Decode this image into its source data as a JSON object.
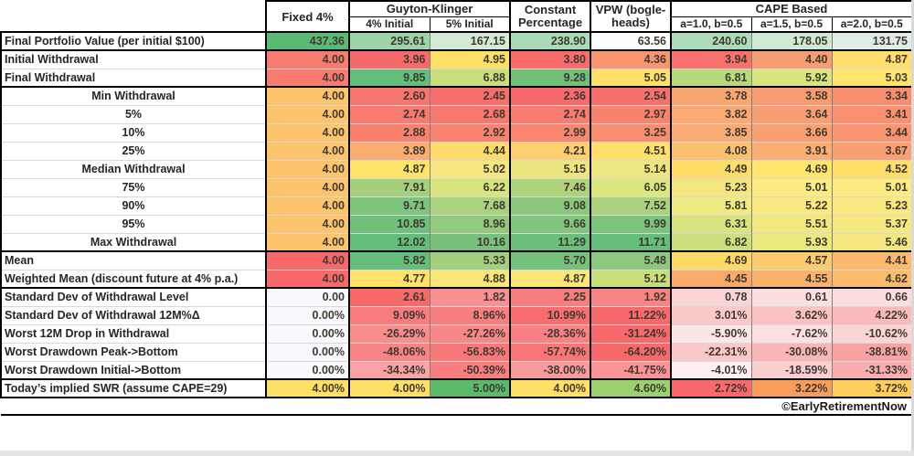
{
  "chart_data": {
    "type": "heatmap",
    "title": "",
    "palette": {
      "min_color": "#F8696B",
      "mid_color": "#FFEB84",
      "max_color": "#63BE7B"
    },
    "header": {
      "fixed": "Fixed 4%",
      "guyton_klinger": "Guyton-Klinger",
      "gk_sub_1": "4% Initial",
      "gk_sub_2": "5% Initial",
      "constant_1": "Constant",
      "constant_2": "Percentage",
      "vpw_1": "VPW (bogle-",
      "vpw_2": "heads)",
      "cape": "CAPE Based",
      "cape_sub_1": "a=1.0, b=0.5",
      "cape_sub_2": "a=1.5, b=0.5",
      "cape_sub_3": "a=2.0, b=0.5"
    },
    "columns": [
      "Fixed 4%",
      "Guyton-Klinger 4% Initial",
      "Guyton-Klinger 5% Initial",
      "Constant Percentage",
      "VPW (bogleheads)",
      "CAPE Based a=1.0, b=0.5",
      "CAPE Based a=1.5, b=0.5",
      "CAPE Based a=2.0, b=0.5"
    ],
    "rows": [
      {
        "label": "Final Portfolio Value (per initial $100)",
        "align": "left",
        "sectionStart": true,
        "values": [
          "437.36",
          "295.61",
          "167.15",
          "238.90",
          "63.56",
          "240.60",
          "178.05",
          "131.75"
        ],
        "colors": [
          "#5ABA73",
          "#9DD3A6",
          "#D2EAD6",
          "#ABDAB6",
          "#FDFDFB",
          "#AEDCBA",
          "#CFE9D6",
          "#E0EDE5"
        ]
      },
      {
        "label": "Initial Withdrawal",
        "align": "left",
        "sectionStart": true,
        "values": [
          "4.00",
          "3.96",
          "4.95",
          "3.80",
          "4.36",
          "3.94",
          "4.40",
          "4.87"
        ],
        "colors": [
          "#F87B70",
          "#F8696B",
          "#FFE066",
          "#F86C6C",
          "#F9966F",
          "#F8716D",
          "#F99D72",
          "#FFDF6B"
        ]
      },
      {
        "label": "Final Withdrawal",
        "align": "left",
        "sectionStart": false,
        "values": [
          "4.00",
          "9.85",
          "6.88",
          "9.28",
          "5.05",
          "6.81",
          "5.92",
          "5.03"
        ],
        "colors": [
          "#F87B70",
          "#63BE7B",
          "#C9DF7D",
          "#70C07A",
          "#FFE169",
          "#B8D97B",
          "#D9E57D",
          "#FFE56D"
        ]
      },
      {
        "label": "Min Withdrawal",
        "align": "center",
        "sectionStart": true,
        "values": [
          "4.00",
          "2.60",
          "2.45",
          "2.36",
          "2.54",
          "3.78",
          "3.58",
          "3.34"
        ],
        "colors": [
          "#FBC46D",
          "#F8746E",
          "#F86E6C",
          "#F8696B",
          "#F8706D",
          "#FAA772",
          "#F99B71",
          "#F98D6F"
        ]
      },
      {
        "label": "5%",
        "align": "center",
        "sectionStart": false,
        "values": [
          "4.00",
          "2.74",
          "2.68",
          "2.74",
          "2.97",
          "3.82",
          "3.64",
          "3.41"
        ],
        "colors": [
          "#FBC46D",
          "#F87A70",
          "#F8776F",
          "#F87A70",
          "#F9826F",
          "#FAA973",
          "#F99E72",
          "#F99170"
        ]
      },
      {
        "label": "10%",
        "align": "center",
        "sectionStart": false,
        "values": [
          "4.00",
          "2.88",
          "2.92",
          "2.99",
          "3.25",
          "3.85",
          "3.66",
          "3.44"
        ],
        "colors": [
          "#FBC46D",
          "#F9816E",
          "#F9836F",
          "#F9876F",
          "#F98D70",
          "#FAAB73",
          "#F99F72",
          "#F99370"
        ]
      },
      {
        "label": "25%",
        "align": "center",
        "sectionStart": false,
        "values": [
          "4.00",
          "3.89",
          "4.44",
          "4.21",
          "4.51",
          "4.08",
          "3.91",
          "3.67"
        ],
        "colors": [
          "#FBC46D",
          "#FAAC73",
          "#FFDC69",
          "#FDCF6E",
          "#FFE06A",
          "#FBC06E",
          "#FAAE73",
          "#F9A072"
        ]
      },
      {
        "label": "Median Withdrawal",
        "align": "center",
        "sectionStart": false,
        "values": [
          "4.00",
          "4.87",
          "5.02",
          "5.15",
          "5.14",
          "4.49",
          "4.69",
          "4.52"
        ],
        "colors": [
          "#FBC46D",
          "#FEE468",
          "#F4E681",
          "#EDE680",
          "#EEE680",
          "#FEDE69",
          "#FEE56B",
          "#FEDF6A"
        ]
      },
      {
        "label": "75%",
        "align": "center",
        "sectionStart": false,
        "values": [
          "4.00",
          "7.91",
          "6.22",
          "7.46",
          "6.05",
          "5.23",
          "5.01",
          "5.01"
        ],
        "colors": [
          "#FBC46D",
          "#A3CF7E",
          "#D8E47E",
          "#AED37D",
          "#DDE77F",
          "#F4E780",
          "#FBEB80",
          "#FBEB80"
        ]
      },
      {
        "label": "90%",
        "align": "center",
        "sectionStart": false,
        "values": [
          "4.00",
          "9.71",
          "7.68",
          "9.08",
          "7.52",
          "5.81",
          "5.22",
          "5.23"
        ],
        "colors": [
          "#FBC46D",
          "#7FC47C",
          "#ABD27E",
          "#8BC87D",
          "#AAD27E",
          "#EFEA81",
          "#F8EA7F",
          "#F8EA7F"
        ]
      },
      {
        "label": "95%",
        "align": "center",
        "sectionStart": false,
        "values": [
          "4.00",
          "10.85",
          "8.96",
          "9.66",
          "9.99",
          "6.31",
          "5.51",
          "5.37"
        ],
        "colors": [
          "#FBC46D",
          "#70BF7A",
          "#93C97D",
          "#82C57C",
          "#7CC37C",
          "#D9E47E",
          "#F3E780",
          "#F6E880"
        ]
      },
      {
        "label": "Max Withdrawal",
        "align": "center",
        "sectionStart": false,
        "values": [
          "4.00",
          "12.02",
          "10.16",
          "11.29",
          "11.71",
          "6.82",
          "5.93",
          "5.46"
        ],
        "colors": [
          "#FBC46D",
          "#63BE7B",
          "#77C17B",
          "#6BBF7A",
          "#66BE7B",
          "#CCDF7D",
          "#E9E980",
          "#F5E780"
        ]
      },
      {
        "label": "Mean",
        "align": "left",
        "sectionStart": true,
        "values": [
          "4.00",
          "5.82",
          "5.33",
          "5.70",
          "5.48",
          "4.69",
          "4.57",
          "4.41"
        ],
        "colors": [
          "#F8696B",
          "#66BE7B",
          "#A2D07E",
          "#76C17B",
          "#8CC87D",
          "#FED966",
          "#FCCB6E",
          "#FBBA6E"
        ]
      },
      {
        "label": "Weighted Mean (discount future at 4% p.a.)",
        "align": "left",
        "sectionStart": false,
        "values": [
          "4.00",
          "4.77",
          "4.88",
          "4.87",
          "5.12",
          "4.45",
          "4.55",
          "4.62"
        ],
        "colors": [
          "#F8696B",
          "#FEE26A",
          "#FBE678",
          "#FBE678",
          "#C9DE7A",
          "#FAAB6C",
          "#FBB26D",
          "#FCBC6E"
        ]
      },
      {
        "label": "Standard Dev of Withdrawal Level",
        "align": "left",
        "sectionStart": true,
        "values": [
          "0.00",
          "2.61",
          "1.82",
          "2.25",
          "1.92",
          "0.78",
          "0.61",
          "0.66"
        ],
        "colors": [
          "#F9F8FC",
          "#F8696B",
          "#F98F91",
          "#F87D7F",
          "#F88486",
          "#FBD5D6",
          "#FCDEDF",
          "#FCDCDD"
        ]
      },
      {
        "label": "Standard Dev of Withdrawal 12M%Δ",
        "align": "left",
        "sectionStart": false,
        "values": [
          "0.00%",
          "9.09%",
          "8.96%",
          "10.99%",
          "11.22%",
          "3.01%",
          "3.62%",
          "4.22%"
        ],
        "colors": [
          "#F9F8FC",
          "#F87C7E",
          "#F87E80",
          "#F86D6F",
          "#F8696B",
          "#FBC9CA",
          "#FBC1C3",
          "#FABABC"
        ]
      },
      {
        "label": "Worst 12M Drop in Withdrawal",
        "align": "left",
        "sectionStart": false,
        "values": [
          "0.00%",
          "-26.29%",
          "-27.26%",
          "-28.36%",
          "-31.24%",
          "-5.90%",
          "-7.62%",
          "-10.62%"
        ],
        "colors": [
          "#F9F8FC",
          "#F98C8D",
          "#F98788",
          "#F98183",
          "#F8696B",
          "#FCE7E8",
          "#FCE0E1",
          "#FBD4D5"
        ]
      },
      {
        "label": "Worst Drawdown Peak->Bottom",
        "align": "left",
        "sectionStart": false,
        "values": [
          "0.00%",
          "-48.06%",
          "-56.83%",
          "-57.74%",
          "-64.20%",
          "-22.31%",
          "-30.08%",
          "-38.81%"
        ],
        "colors": [
          "#F9F8FC",
          "#F88486",
          "#F87779",
          "#F87678",
          "#F8696B",
          "#FBC8C9",
          "#FAB5B7",
          "#F9A2A4"
        ]
      },
      {
        "label": "Worst Drawdown Initial->Bottom",
        "align": "left",
        "sectionStart": false,
        "values": [
          "0.00%",
          "-34.34%",
          "-50.39%",
          "-38.00%",
          "-41.75%",
          "-4.01%",
          "-18.59%",
          "-31.33%"
        ],
        "colors": [
          "#F9F8FC",
          "#F9A3A5",
          "#F87E80",
          "#F99B9D",
          "#F99395",
          "#FDEFEF",
          "#FBCFD0",
          "#FAAEB0"
        ]
      },
      {
        "label": "Today’s implied SWR (assume CAPE=29)",
        "align": "left",
        "sectionStart": true,
        "values": [
          "4.00%",
          "4.00%",
          "5.00%",
          "4.00%",
          "4.60%",
          "2.72%",
          "3.22%",
          "3.72%"
        ],
        "colors": [
          "#FFE066",
          "#FFE066",
          "#5BBB6B",
          "#FFE066",
          "#9CD16F",
          "#F8696B",
          "#FA9D5A",
          "#FFCE5D"
        ]
      }
    ],
    "footer": "©EarlyRetirementNow"
  }
}
